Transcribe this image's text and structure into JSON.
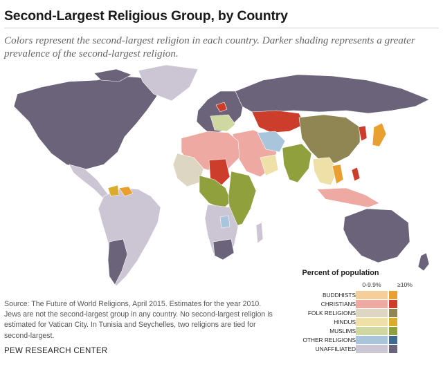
{
  "title": "Second-Largest Religious Group, by Country",
  "subtitle": "Colors represent the second-largest religion in each country. Darker shading represents a greater prevalence of the second-largest religion.",
  "source": "Source: The Future of World Religions, April 2015. Estimates for the year 2010. Jews are not the second-largest group in any country. No second-largest religion is estimated for Vatican City. In Tunisia and Seychelles, two religions are tied for second-largest.",
  "organization": "PEW RESEARCH CENTER",
  "legend": {
    "title": "Percent of population",
    "low_label": "0-9.9%",
    "high_label": "≥10%",
    "categories": [
      {
        "label": "BUDDHISTS",
        "light": "#f4cf9a",
        "dark": "#e9a030"
      },
      {
        "label": "CHRISTIANS",
        "light": "#eea9a3",
        "dark": "#cc3d2c"
      },
      {
        "label": "FOLK RELIGIONS",
        "light": "#dcd6c3",
        "dark": "#8f8654"
      },
      {
        "label": "HINDUS",
        "light": "#efe0a8",
        "dark": "#d9ac2b"
      },
      {
        "label": "MUSLIMS",
        "light": "#cfd8a1",
        "dark": "#8fa03c"
      },
      {
        "label": "OTHER RELIGIONS",
        "light": "#a9c5dc",
        "dark": "#3d6a8e"
      },
      {
        "label": "UNAFFILIATED",
        "light": "#cbc5d4",
        "dark": "#6b6379"
      }
    ]
  }
}
